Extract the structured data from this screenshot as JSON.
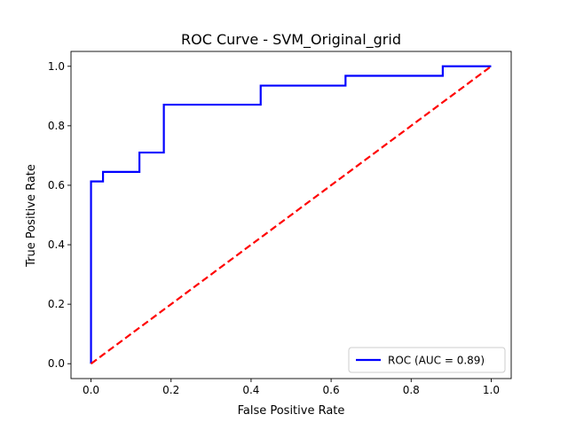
{
  "chart_data": {
    "type": "line",
    "title": "ROC Curve - SVM_Original_grid",
    "xlabel": "False Positive Rate",
    "ylabel": "True Positive Rate",
    "xlim": [
      -0.05,
      1.05
    ],
    "ylim": [
      -0.05,
      1.05
    ],
    "xticks": [
      0.0,
      0.2,
      0.4,
      0.6,
      0.8,
      1.0
    ],
    "yticks": [
      0.0,
      0.2,
      0.4,
      0.6,
      0.8,
      1.0
    ],
    "xtick_labels": [
      "0.0",
      "0.2",
      "0.4",
      "0.6",
      "0.8",
      "1.0"
    ],
    "ytick_labels": [
      "0.0",
      "0.2",
      "0.4",
      "0.6",
      "0.8",
      "1.0"
    ],
    "grid": false,
    "legend_position": "lower-right",
    "series": [
      {
        "name": "ROC (AUC = 0.89)",
        "style": "solid",
        "color": "#0000ff",
        "x": [
          0.0,
          0.0,
          0.03,
          0.03,
          0.121,
          0.121,
          0.182,
          0.182,
          0.424,
          0.424,
          0.636,
          0.636,
          0.879,
          0.879,
          1.0
        ],
        "y": [
          0.0,
          0.613,
          0.613,
          0.645,
          0.645,
          0.71,
          0.71,
          0.871,
          0.871,
          0.935,
          0.935,
          0.968,
          0.968,
          1.0,
          1.0
        ]
      },
      {
        "style": "dashed",
        "color": "#ff0000",
        "x": [
          0.0,
          1.0
        ],
        "y": [
          0.0,
          1.0
        ]
      }
    ]
  }
}
